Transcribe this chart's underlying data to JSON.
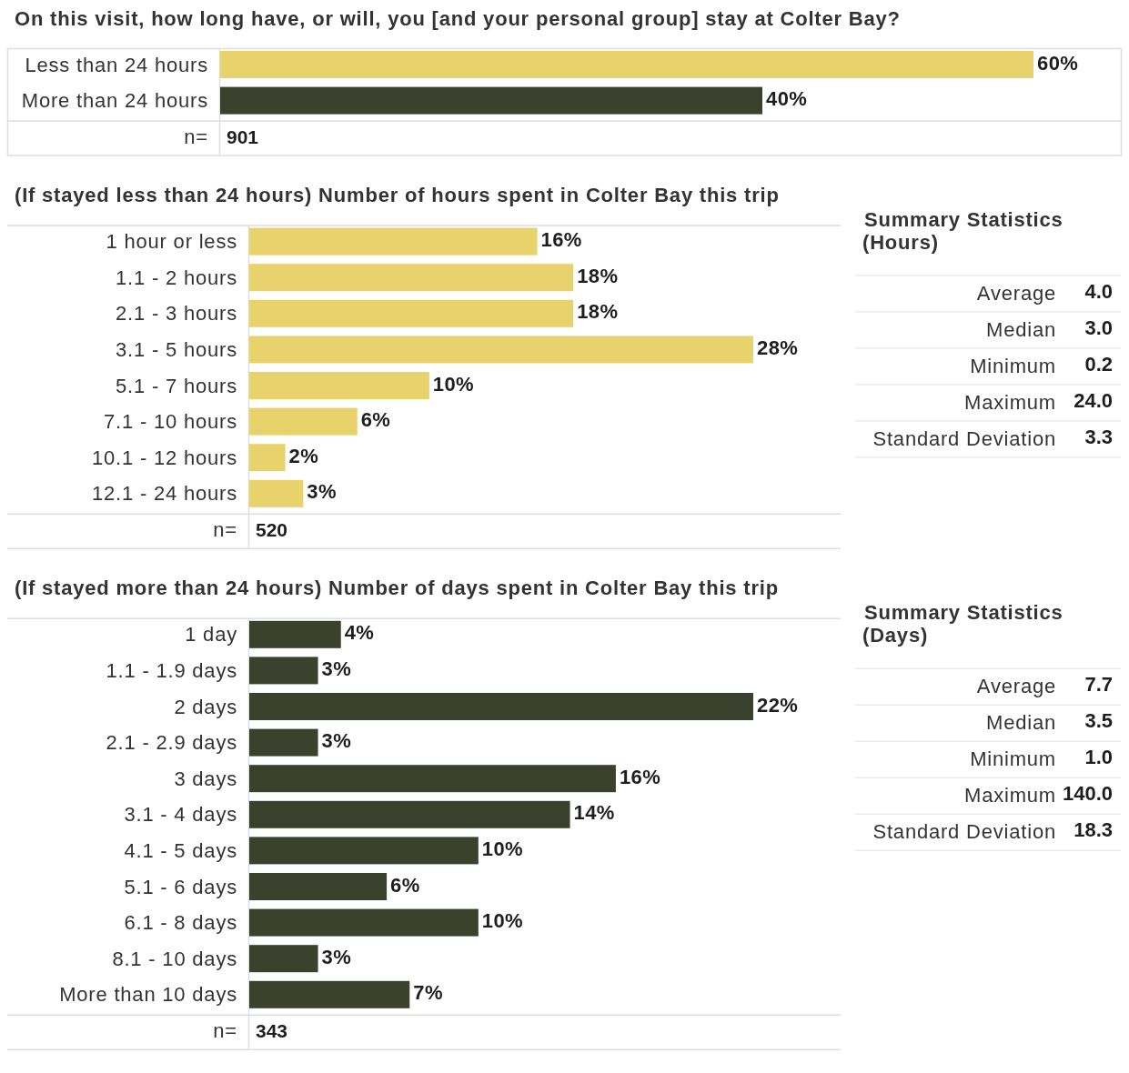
{
  "chart_data": [
    {
      "type": "bar",
      "orientation": "horizontal",
      "title": "On this visit, how long have, or will, you [and your personal group] stay at Colter Bay?",
      "categories": [
        "Less than 24 hours",
        "More than 24 hours"
      ],
      "values": [
        60,
        40
      ],
      "colors": [
        "#e8d26b",
        "#3a422e"
      ],
      "value_labels": [
        "60%",
        "40%"
      ],
      "annotations": [
        "n=",
        "901"
      ]
    },
    {
      "type": "bar",
      "orientation": "horizontal",
      "title": "(If stayed less than 24 hours) Number of hours spent in Colter Bay this trip",
      "categories": [
        "1 hour or less",
        "1.1 - 2 hours",
        "2.1 - 3 hours",
        "3.1 - 5 hours",
        "5.1 - 7 hours",
        "7.1 - 10 hours",
        "10.1 - 12 hours",
        "12.1 - 24 hours"
      ],
      "values": [
        16,
        18,
        18,
        28,
        10,
        6,
        2,
        3
      ],
      "color": "#e8d26b",
      "value_labels": [
        "16%",
        "18%",
        "18%",
        "28%",
        "10%",
        "6%",
        "2%",
        "3%"
      ],
      "annotations": [
        "n=",
        "520"
      ]
    },
    {
      "type": "other",
      "title": "Summary Statistics",
      "subtitle": "(Hours)",
      "categories": [
        "Average",
        "Median",
        "Minimum",
        "Maximum",
        "Standard Deviation"
      ],
      "value_labels": [
        "4.0",
        "3.0",
        "0.2",
        "24.0",
        "3.3"
      ]
    },
    {
      "type": "bar",
      "orientation": "horizontal",
      "title": "(If stayed more than 24 hours) Number of days spent in Colter Bay this trip",
      "categories": [
        "1 day",
        "1.1 - 1.9 days",
        "2 days",
        "2.1 - 2.9 days",
        "3 days",
        "3.1 - 4 days",
        "4.1 - 5 days",
        "5.1 - 6 days",
        "6.1 - 8 days",
        "8.1 - 10 days",
        "More than 10 days"
      ],
      "values": [
        4,
        3,
        22,
        3,
        16,
        14,
        10,
        6,
        10,
        3,
        7
      ],
      "color": "#3a422e",
      "value_labels": [
        "4%",
        "3%",
        "22%",
        "3%",
        "16%",
        "14%",
        "10%",
        "6%",
        "10%",
        "3%",
        "7%"
      ],
      "annotations": [
        "n=",
        "343"
      ]
    },
    {
      "type": "other",
      "title": "Summary Statistics",
      "subtitle": "(Days)",
      "categories": [
        "Average",
        "Median",
        "Minimum",
        "Maximum",
        "Standard Deviation"
      ],
      "value_labels": [
        "7.7",
        "3.5",
        "1.0",
        "140.0",
        "18.3"
      ]
    }
  ]
}
